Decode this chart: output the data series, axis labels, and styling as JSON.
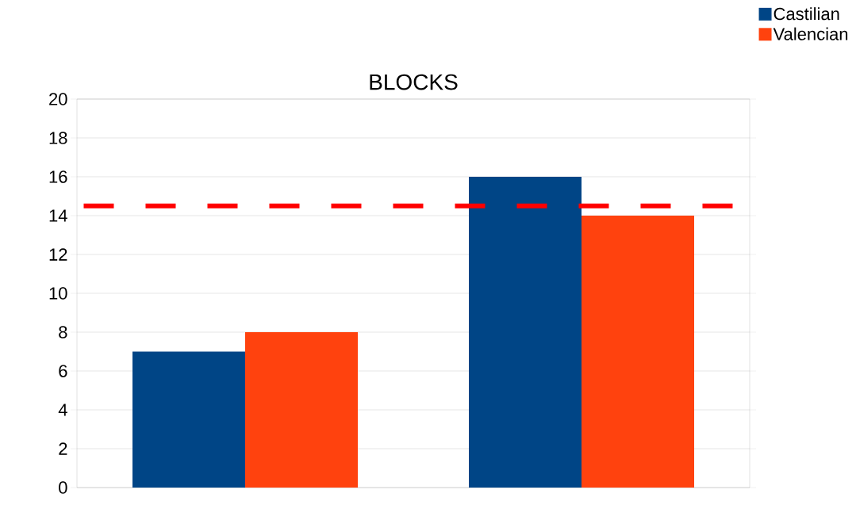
{
  "chart_data": {
    "type": "bar",
    "title": "BLOCKS",
    "categories": [
      null,
      null
    ],
    "series": [
      {
        "name": "Castilian",
        "color": "#004586",
        "values": [
          7,
          16
        ]
      },
      {
        "name": "Valencian",
        "color": "#ff420e",
        "values": [
          8,
          14
        ]
      }
    ],
    "ylim": [
      0,
      20
    ],
    "yticks": [
      0,
      2,
      4,
      6,
      8,
      10,
      12,
      14,
      16,
      18,
      20
    ],
    "grid": "y",
    "legend": "top right",
    "ref_lines": [
      {
        "axis": "y",
        "value": 14.5,
        "color": "#ff0000",
        "line_style": "dashed"
      }
    ]
  }
}
